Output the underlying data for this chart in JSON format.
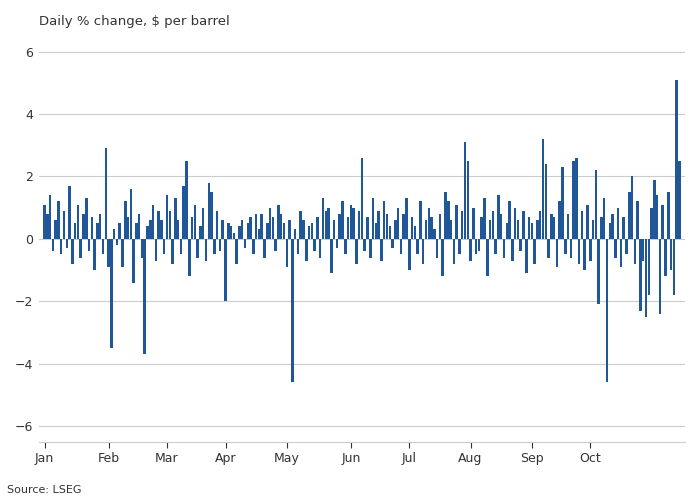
{
  "title": "Daily % change, $ per barrel",
  "source": "Source: LSEG",
  "bar_color": "#1f5799",
  "background_color": "#ffffff",
  "text_color": "#333333",
  "grid_color": "#cccccc",
  "spine_color": "#999999",
  "ylim": [
    -6.5,
    6.5
  ],
  "yticks": [
    -6,
    -4,
    -2,
    0,
    2,
    4,
    6
  ],
  "month_labels": [
    "Jan",
    "Feb",
    "Mar",
    "Apr",
    "May",
    "Jun",
    "Jul",
    "Aug",
    "Sep",
    "Oct"
  ],
  "title_fontsize": 9.5,
  "source_fontsize": 8,
  "tick_fontsize": 9,
  "values": [
    1.1,
    0.8,
    1.4,
    -0.4,
    0.6,
    1.2,
    -0.5,
    0.9,
    -0.3,
    1.7,
    -0.8,
    0.5,
    1.1,
    -0.6,
    0.8,
    1.3,
    -0.4,
    0.7,
    -1.0,
    0.5,
    0.8,
    -0.5,
    2.9,
    -0.9,
    -3.5,
    0.3,
    -0.2,
    0.5,
    -0.9,
    1.2,
    0.7,
    1.6,
    -1.4,
    0.5,
    0.8,
    -0.6,
    -3.7,
    0.4,
    0.6,
    1.1,
    -0.7,
    0.9,
    0.6,
    -0.5,
    1.4,
    0.9,
    -0.8,
    1.3,
    0.6,
    -0.5,
    1.7,
    2.5,
    -1.2,
    0.7,
    1.1,
    -0.6,
    0.4,
    1.0,
    -0.7,
    1.8,
    1.5,
    -0.5,
    0.9,
    -0.4,
    0.6,
    -2.0,
    0.5,
    0.4,
    0.2,
    -0.8,
    0.4,
    0.6,
    -0.3,
    0.5,
    0.7,
    -0.5,
    0.8,
    0.3,
    0.8,
    -0.6,
    0.5,
    1.0,
    0.7,
    -0.4,
    1.1,
    0.8,
    0.5,
    -0.9,
    0.6,
    -4.6,
    0.3,
    -0.5,
    0.9,
    0.6,
    -0.7,
    0.4,
    0.5,
    -0.4,
    0.7,
    -0.6,
    1.3,
    0.9,
    1.0,
    -1.1,
    0.6,
    -0.3,
    0.8,
    1.2,
    -0.5,
    0.7,
    1.1,
    1.0,
    -0.8,
    0.9,
    2.6,
    -0.4,
    0.7,
    -0.6,
    1.3,
    0.5,
    0.9,
    -0.7,
    1.2,
    0.8,
    0.4,
    -0.3,
    0.6,
    1.0,
    -0.5,
    0.8,
    1.3,
    -1.0,
    0.7,
    0.4,
    -0.5,
    1.2,
    -0.8,
    0.6,
    1.0,
    0.7,
    0.3,
    -0.6,
    0.8,
    -1.2,
    1.5,
    1.2,
    0.6,
    -0.8,
    1.1,
    -0.5,
    0.9,
    3.1,
    2.5,
    -0.7,
    1.0,
    -0.5,
    -0.4,
    0.7,
    1.3,
    -1.2,
    0.6,
    0.9,
    -0.5,
    1.4,
    0.8,
    -0.6,
    0.5,
    1.2,
    -0.7,
    1.0,
    0.6,
    -0.4,
    0.9,
    -1.1,
    0.7,
    0.5,
    -0.8,
    0.6,
    0.9,
    3.2,
    2.4,
    -0.6,
    0.8,
    0.7,
    -0.9,
    1.2,
    2.3,
    -0.5,
    0.8,
    -0.6,
    2.5,
    2.6,
    -0.8,
    0.9,
    -1.0,
    1.1,
    -0.7,
    0.6,
    2.2,
    -2.1,
    0.7,
    1.3,
    -4.6,
    0.5,
    0.8,
    -0.6,
    1.0,
    -0.9,
    0.7,
    -0.5,
    1.5,
    2.0,
    -0.8,
    1.2,
    -2.3,
    -0.7,
    -2.5,
    -1.8,
    1.0,
    1.9,
    1.4,
    -2.4,
    1.1,
    -1.2,
    1.5,
    -1.0,
    -1.8,
    5.1,
    2.5
  ]
}
